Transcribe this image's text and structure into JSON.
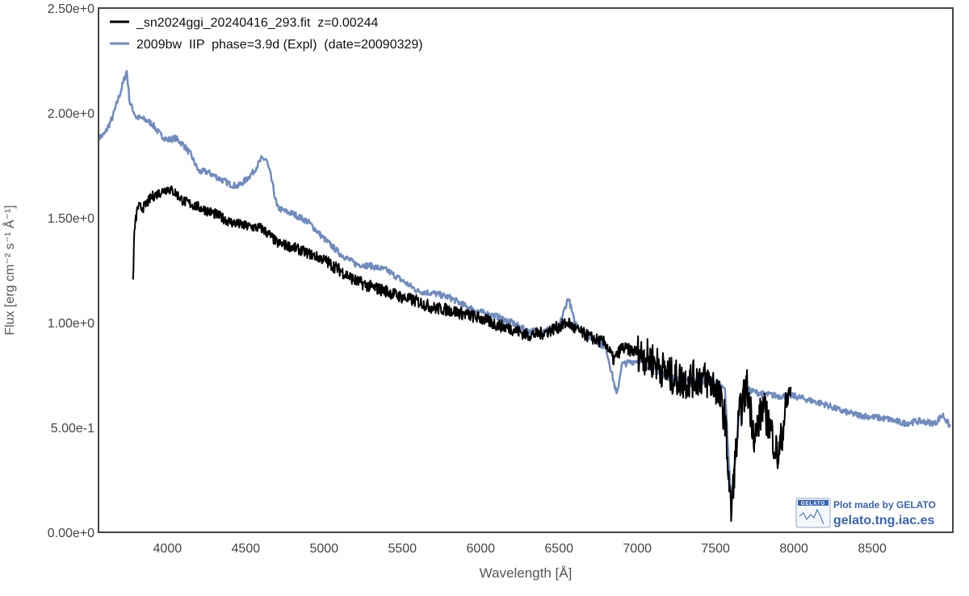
{
  "chart_data": {
    "type": "line",
    "title": "",
    "xlabel": "Wavelength [Å]",
    "ylabel": "Flux [erg cm⁻² s⁻¹ Å⁻¹]",
    "xlim": [
      3560,
      9015
    ],
    "ylim": [
      0,
      2.5
    ],
    "xticks": [
      4000,
      4500,
      5000,
      5500,
      6000,
      6500,
      7000,
      7500,
      8000,
      8500
    ],
    "xtick_labels": [
      "4000",
      "4500",
      "5000",
      "5500",
      "6000",
      "6500",
      "7000",
      "7500",
      "8000",
      "8500"
    ],
    "yticks": [
      0,
      0.5,
      1.0,
      1.5,
      2.0,
      2.5
    ],
    "ytick_labels": [
      "0.00e+0",
      "5.00e-1",
      "1.00e+0",
      "1.50e+0",
      "2.00e+0",
      "2.50e+0"
    ],
    "grid": false,
    "legend_position": "top-left",
    "series": [
      {
        "name": "_sn2024ggi_20240416_293.fit  z=0.00244",
        "color": "#000000",
        "x": [
          3780,
          3790,
          3810,
          3850,
          3900,
          3950,
          4000,
          4050,
          4100,
          4200,
          4300,
          4400,
          4500,
          4600,
          4650,
          4700,
          4800,
          4900,
          5000,
          5100,
          5200,
          5300,
          5400,
          5500,
          5600,
          5700,
          5800,
          5900,
          6000,
          6100,
          6200,
          6300,
          6400,
          6500,
          6560,
          6600,
          6700,
          6800,
          6850,
          6900,
          7000,
          7100,
          7200,
          7300,
          7400,
          7500,
          7560,
          7600,
          7620,
          7650,
          7700,
          7750,
          7800,
          7850,
          7900,
          7950,
          7980
        ],
        "y": [
          1.2,
          1.45,
          1.55,
          1.55,
          1.6,
          1.62,
          1.64,
          1.62,
          1.58,
          1.55,
          1.52,
          1.48,
          1.46,
          1.45,
          1.42,
          1.38,
          1.36,
          1.33,
          1.3,
          1.25,
          1.2,
          1.17,
          1.15,
          1.12,
          1.1,
          1.07,
          1.06,
          1.04,
          1.02,
          0.99,
          0.97,
          0.94,
          0.95,
          0.98,
          1.0,
          0.97,
          0.93,
          0.9,
          0.82,
          0.88,
          0.86,
          0.82,
          0.75,
          0.72,
          0.74,
          0.7,
          0.55,
          0.08,
          0.3,
          0.55,
          0.7,
          0.45,
          0.6,
          0.5,
          0.35,
          0.6,
          0.7
        ]
      },
      {
        "name": "2009bw  IIP  phase=3.9d (Expl)  (date=20090329)",
        "color": "#6f8bbf",
        "x": [
          3560,
          3600,
          3650,
          3700,
          3740,
          3760,
          3800,
          3850,
          3900,
          3950,
          4000,
          4050,
          4100,
          4150,
          4200,
          4250,
          4300,
          4350,
          4400,
          4450,
          4500,
          4550,
          4600,
          4630,
          4660,
          4700,
          4750,
          4800,
          4900,
          5000,
          5100,
          5200,
          5300,
          5400,
          5500,
          5600,
          5700,
          5800,
          5900,
          6000,
          6100,
          6200,
          6300,
          6400,
          6500,
          6560,
          6600,
          6700,
          6800,
          6840,
          6870,
          6900,
          7000,
          7100,
          7200,
          7300,
          7400,
          7500,
          7560,
          7600,
          7630,
          7660,
          7700,
          7800,
          7900,
          8000,
          8100,
          8200,
          8300,
          8400,
          8500,
          8600,
          8700,
          8800,
          8900,
          8950,
          9000
        ],
        "y": [
          1.88,
          1.9,
          1.98,
          2.1,
          2.2,
          2.05,
          1.98,
          1.97,
          1.95,
          1.9,
          1.87,
          1.88,
          1.85,
          1.8,
          1.72,
          1.72,
          1.7,
          1.68,
          1.66,
          1.65,
          1.68,
          1.72,
          1.78,
          1.78,
          1.7,
          1.55,
          1.53,
          1.52,
          1.48,
          1.4,
          1.33,
          1.28,
          1.27,
          1.25,
          1.2,
          1.15,
          1.14,
          1.12,
          1.08,
          1.05,
          1.03,
          1.0,
          0.96,
          0.96,
          0.98,
          1.12,
          1.0,
          0.93,
          0.88,
          0.75,
          0.65,
          0.8,
          0.82,
          0.78,
          0.74,
          0.73,
          0.72,
          0.72,
          0.68,
          0.12,
          0.4,
          0.65,
          0.68,
          0.66,
          0.65,
          0.65,
          0.63,
          0.61,
          0.58,
          0.56,
          0.55,
          0.54,
          0.52,
          0.53,
          0.52,
          0.56,
          0.5
        ]
      }
    ]
  },
  "watermark": {
    "logo_text": "GELATO",
    "line1": "Plot made by GELATO",
    "line2": "gelato.tng.iac.es"
  }
}
